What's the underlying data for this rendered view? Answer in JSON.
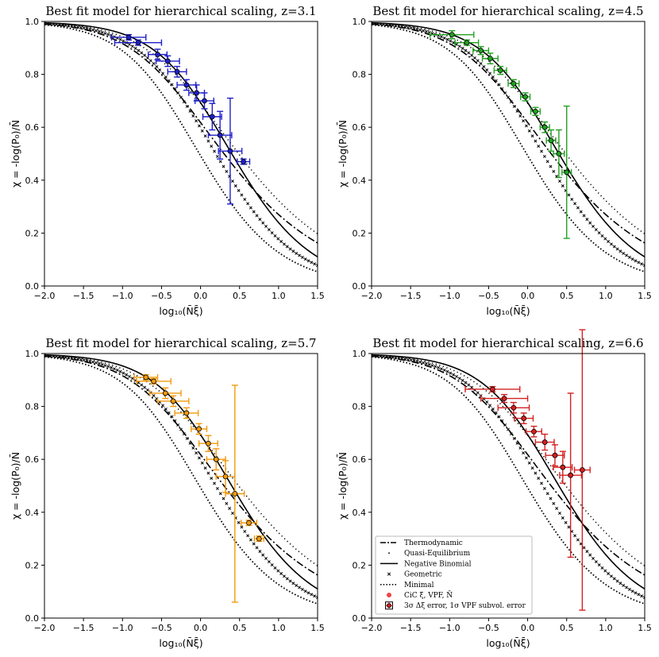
{
  "chart_data": [
    {
      "type": "line",
      "title": "Best fit model for hierarchical scaling, z=3.1",
      "xlabel": "log₁₀(N̄ξ̄)",
      "ylabel": "χ = -log(P₀)/N̄",
      "xlim": [
        -2.0,
        1.5
      ],
      "ylim": [
        0.0,
        1.0
      ],
      "xticks": [
        "−2.0",
        "−1.5",
        "−1.0",
        "−0.5",
        "0.0",
        "0.5",
        "1.0",
        "1.5"
      ],
      "yticks": [
        "0.0",
        "0.2",
        "0.4",
        "0.6",
        "0.8",
        "1.0"
      ],
      "data_color": "#1f1fcc",
      "points": [
        {
          "x": -0.92,
          "y": 0.94,
          "xerr": 0.22,
          "yerr": 0.01
        },
        {
          "x": -0.8,
          "y": 0.92,
          "xerr": 0.3,
          "yerr": 0.01
        },
        {
          "x": -0.55,
          "y": 0.875,
          "xerr": 0.12,
          "yerr": 0.02
        },
        {
          "x": -0.42,
          "y": 0.85,
          "xerr": 0.15,
          "yerr": 0.02
        },
        {
          "x": -0.3,
          "y": 0.81,
          "xerr": 0.12,
          "yerr": 0.02
        },
        {
          "x": -0.18,
          "y": 0.76,
          "xerr": 0.12,
          "yerr": 0.02
        },
        {
          "x": -0.05,
          "y": 0.73,
          "xerr": 0.1,
          "yerr": 0.03
        },
        {
          "x": 0.05,
          "y": 0.7,
          "xerr": 0.12,
          "yerr": 0.03
        },
        {
          "x": 0.15,
          "y": 0.64,
          "xerr": 0.12,
          "yerr": 0.05
        },
        {
          "x": 0.25,
          "y": 0.57,
          "xerr": 0.15,
          "yerr": 0.09
        },
        {
          "x": 0.38,
          "y": 0.51,
          "xerr": 0.15,
          "yerr": 0.2
        },
        {
          "x": 0.55,
          "y": 0.47,
          "xerr": 0.08,
          "yerr": 0.01
        }
      ]
    },
    {
      "type": "line",
      "title": "Best fit model for hierarchical scaling, z=4.5",
      "xlabel": "log₁₀(N̄ξ̄)",
      "ylabel": "χ = -log(P₀)/N̄",
      "xlim": [
        -2.0,
        1.5
      ],
      "ylim": [
        0.0,
        1.0
      ],
      "xticks": [
        "−2.0",
        "−1.5",
        "−1.0",
        "−0.5",
        "0.0",
        "0.5",
        "1.0",
        "1.5"
      ],
      "yticks": [
        "0.0",
        "0.2",
        "0.4",
        "0.6",
        "0.8",
        "1.0"
      ],
      "data_color": "#22a022",
      "points": [
        {
          "x": -0.97,
          "y": 0.95,
          "xerr": 0.28,
          "yerr": 0.015
        },
        {
          "x": -0.78,
          "y": 0.92,
          "xerr": 0.15,
          "yerr": 0.01
        },
        {
          "x": -0.6,
          "y": 0.89,
          "xerr": 0.1,
          "yerr": 0.015
        },
        {
          "x": -0.48,
          "y": 0.86,
          "xerr": 0.1,
          "yerr": 0.02
        },
        {
          "x": -0.35,
          "y": 0.815,
          "xerr": 0.08,
          "yerr": 0.015
        },
        {
          "x": -0.18,
          "y": 0.765,
          "xerr": 0.07,
          "yerr": 0.015
        },
        {
          "x": -0.03,
          "y": 0.715,
          "xerr": 0.06,
          "yerr": 0.015
        },
        {
          "x": 0.1,
          "y": 0.66,
          "xerr": 0.06,
          "yerr": 0.015
        },
        {
          "x": 0.22,
          "y": 0.6,
          "xerr": 0.06,
          "yerr": 0.02
        },
        {
          "x": 0.3,
          "y": 0.55,
          "xerr": 0.06,
          "yerr": 0.04
        },
        {
          "x": 0.4,
          "y": 0.5,
          "xerr": 0.07,
          "yerr": 0.09
        },
        {
          "x": 0.5,
          "y": 0.43,
          "xerr": 0.06,
          "yerr": 0.25
        }
      ]
    },
    {
      "type": "line",
      "title": "Best fit model for hierarchical scaling, z=5.7",
      "xlabel": "log₁₀(N̄ξ̄)",
      "ylabel": "χ = -log(P₀)/N̄",
      "xlim": [
        -2.0,
        1.5
      ],
      "ylim": [
        0.0,
        1.0
      ],
      "xticks": [
        "−2.0",
        "−1.5",
        "−1.0",
        "−0.5",
        "0.0",
        "0.5",
        "1.0",
        "1.5"
      ],
      "yticks": [
        "0.0",
        "0.2",
        "0.4",
        "0.6",
        "0.8",
        "1.0"
      ],
      "data_color": "#f29a0c",
      "points": [
        {
          "x": -0.7,
          "y": 0.91,
          "xerr": 0.15,
          "yerr": 0.01
        },
        {
          "x": -0.6,
          "y": 0.895,
          "xerr": 0.22,
          "yerr": 0.01
        },
        {
          "x": -0.45,
          "y": 0.85,
          "xerr": 0.2,
          "yerr": 0.02
        },
        {
          "x": -0.35,
          "y": 0.82,
          "xerr": 0.2,
          "yerr": 0.02
        },
        {
          "x": -0.18,
          "y": 0.775,
          "xerr": 0.15,
          "yerr": 0.02
        },
        {
          "x": -0.02,
          "y": 0.715,
          "xerr": 0.1,
          "yerr": 0.02
        },
        {
          "x": 0.1,
          "y": 0.66,
          "xerr": 0.12,
          "yerr": 0.03
        },
        {
          "x": 0.2,
          "y": 0.6,
          "xerr": 0.12,
          "yerr": 0.04
        },
        {
          "x": 0.32,
          "y": 0.535,
          "xerr": 0.12,
          "yerr": 0.06
        },
        {
          "x": 0.44,
          "y": 0.47,
          "xerr": 0.12,
          "yerr": 0.41
        },
        {
          "x": 0.62,
          "y": 0.36,
          "xerr": 0.1,
          "yerr": 0.01
        },
        {
          "x": 0.75,
          "y": 0.3,
          "xerr": 0.06,
          "yerr": 0.01
        }
      ]
    },
    {
      "type": "line",
      "title": "Best fit model for hierarchical scaling, z=6.6",
      "xlabel": "log₁₀(N̄ξ̄)",
      "ylabel": "χ = -log(P₀)/N̄",
      "xlim": [
        -2.0,
        1.5
      ],
      "ylim": [
        0.0,
        1.0
      ],
      "xticks": [
        "−2.0",
        "−1.5",
        "−1.0",
        "−0.5",
        "0.0",
        "0.5",
        "1.0",
        "1.5"
      ],
      "yticks": [
        "0.0",
        "0.2",
        "0.4",
        "0.6",
        "0.8",
        "1.0"
      ],
      "data_color": "#d42020",
      "points": [
        {
          "x": -0.45,
          "y": 0.865,
          "xerr": 0.35,
          "yerr": 0.01
        },
        {
          "x": -0.3,
          "y": 0.83,
          "xerr": 0.3,
          "yerr": 0.015
        },
        {
          "x": -0.18,
          "y": 0.795,
          "xerr": 0.2,
          "yerr": 0.02
        },
        {
          "x": -0.05,
          "y": 0.755,
          "xerr": 0.12,
          "yerr": 0.02
        },
        {
          "x": 0.08,
          "y": 0.705,
          "xerr": 0.1,
          "yerr": 0.02
        },
        {
          "x": 0.22,
          "y": 0.665,
          "xerr": 0.12,
          "yerr": 0.03
        },
        {
          "x": 0.35,
          "y": 0.615,
          "xerr": 0.12,
          "yerr": 0.04
        },
        {
          "x": 0.45,
          "y": 0.57,
          "xerr": 0.12,
          "yerr": 0.06
        },
        {
          "x": 0.55,
          "y": 0.54,
          "xerr": 0.14,
          "yerr": 0.31
        },
        {
          "x": 0.7,
          "y": 0.56,
          "xerr": 0.1,
          "yerr": 0.53
        }
      ]
    }
  ],
  "legend": {
    "items": [
      {
        "label": "Thermodynamic",
        "style": "dashdot"
      },
      {
        "label": "Quasi-Equilibrium",
        "style": "tinydot"
      },
      {
        "label": "Negative Binomial",
        "style": "solid"
      },
      {
        "label": "Geometric",
        "style": "cross"
      },
      {
        "label": "Minimal",
        "style": "dotted"
      },
      {
        "label": "CiC ξ̄, VPF, N̄",
        "style": "dot-marker"
      },
      {
        "label": "3σ Δξ error, 1σ VPF subvol. error",
        "style": "errbox"
      }
    ]
  }
}
